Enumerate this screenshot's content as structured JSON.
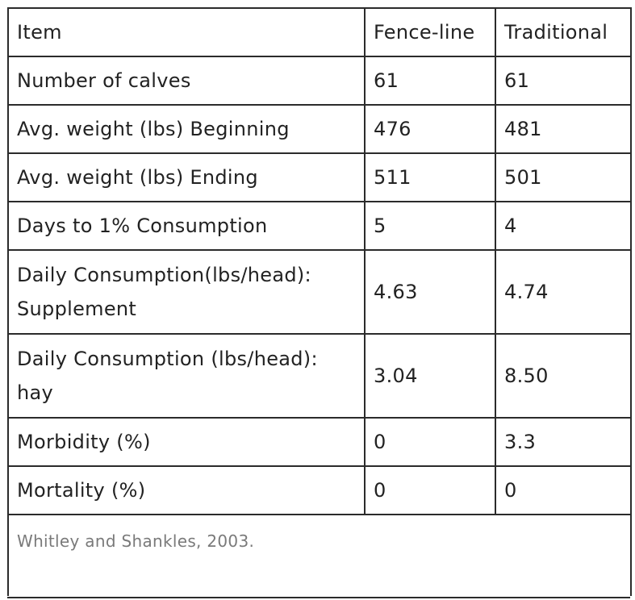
{
  "table": {
    "headers": [
      "Item",
      "Fence-line",
      "Traditional"
    ],
    "rows": [
      {
        "item": "Number of calves",
        "fence_line": "61",
        "traditional": "61"
      },
      {
        "item": "Avg. weight (lbs) Beginning",
        "fence_line": "476",
        "traditional": "481"
      },
      {
        "item": "Avg. weight (lbs) Ending",
        "fence_line": "511",
        "traditional": "501"
      },
      {
        "item": "Days to 1% Consumption",
        "fence_line": "5",
        "traditional": "4"
      },
      {
        "item": "Daily Consumption(lbs/head): Supplement",
        "fence_line": "4.63",
        "traditional": "4.74"
      },
      {
        "item": "Daily Consumption (lbs/head): hay",
        "fence_line": "3.04",
        "traditional": "8.50"
      },
      {
        "item": "Morbidity (%)",
        "fence_line": "0",
        "traditional": "3.3"
      },
      {
        "item": "Mortality (%)",
        "fence_line": "0",
        "traditional": "0"
      }
    ],
    "source": "Whitley and Shankles, 2003."
  }
}
